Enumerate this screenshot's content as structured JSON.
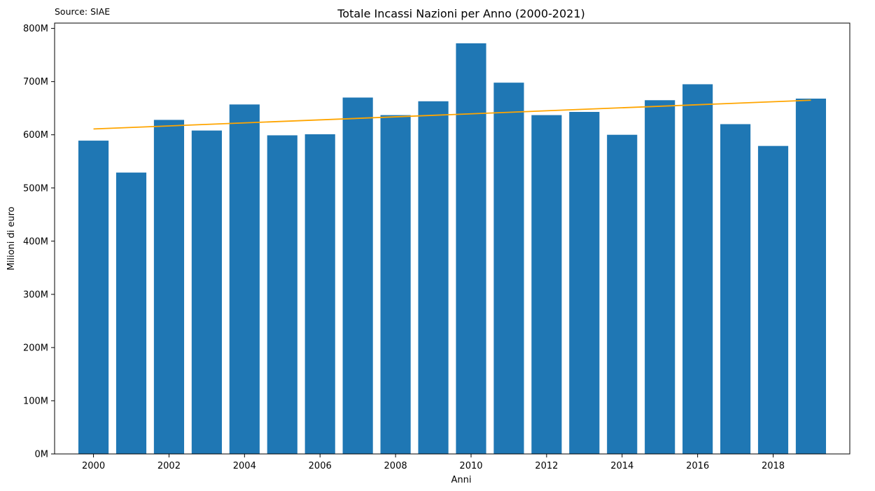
{
  "chart_data": {
    "type": "bar",
    "title": "Totale Incassi Nazioni per Anno (2000-2021)",
    "source": "Source: SIAE",
    "xlabel": "Anni",
    "ylabel": "Milioni di euro",
    "x": [
      2000,
      2001,
      2002,
      2003,
      2004,
      2005,
      2006,
      2007,
      2008,
      2009,
      2010,
      2011,
      2012,
      2013,
      2014,
      2015,
      2016,
      2017,
      2018,
      2019
    ],
    "values": [
      589,
      529,
      628,
      608,
      657,
      599,
      601,
      670,
      637,
      663,
      772,
      698,
      637,
      643,
      600,
      665,
      695,
      620,
      579,
      668
    ],
    "trend": {
      "x": [
        2000,
        2019
      ],
      "y": [
        611,
        665
      ]
    },
    "xticks": [
      2000,
      2002,
      2004,
      2006,
      2008,
      2010,
      2012,
      2014,
      2016,
      2018
    ],
    "xtick_labels": [
      "2000",
      "2002",
      "2004",
      "2006",
      "2008",
      "2010",
      "2012",
      "2014",
      "2016",
      "2018"
    ],
    "yticks": [
      0,
      100,
      200,
      300,
      400,
      500,
      600,
      700,
      800
    ],
    "ytick_labels": [
      "0M",
      "100M",
      "200M",
      "300M",
      "400M",
      "500M",
      "600M",
      "700M",
      "800M"
    ],
    "xlim": [
      1998.97,
      2020.03
    ],
    "ylim": [
      0,
      810
    ],
    "grid": false,
    "colors": {
      "bar": "#1f77b4",
      "trend": "#ffa500"
    }
  }
}
